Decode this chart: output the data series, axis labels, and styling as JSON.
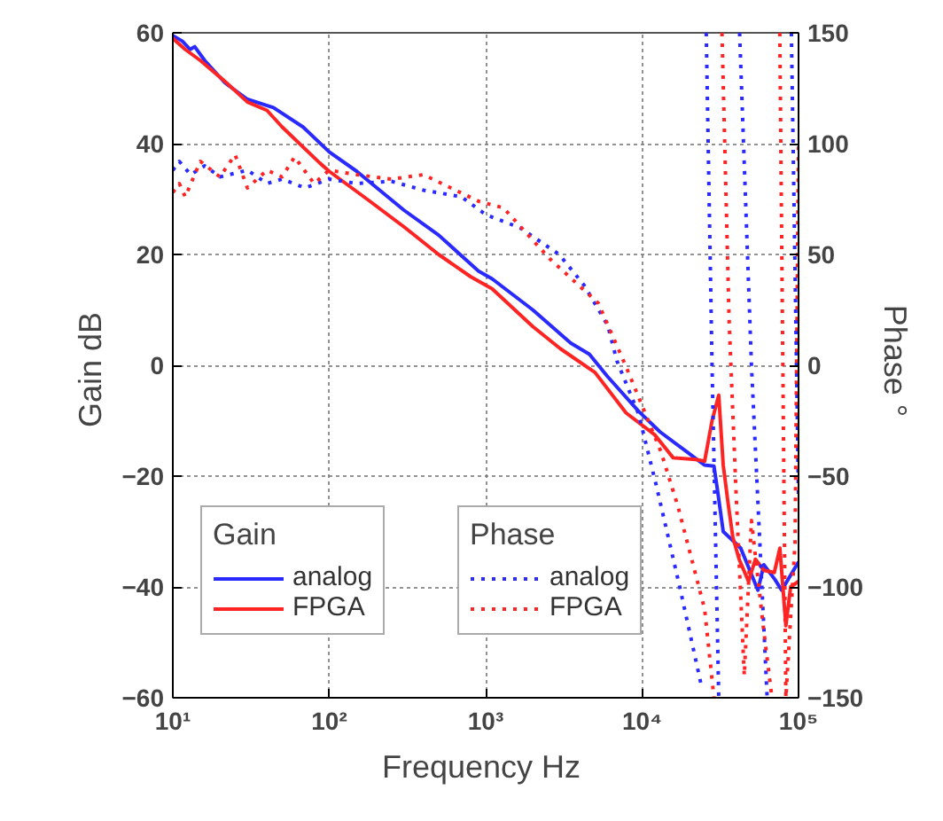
{
  "chart_data": {
    "type": "line",
    "xlabel": "Frequency  Hz",
    "ylabel": "Gain  dB",
    "y2label": "Phase  °",
    "log": "x",
    "xlim": [
      10,
      100000
    ],
    "ylim": [
      -60,
      60
    ],
    "y2lim": [
      -150,
      150
    ],
    "xticks": [
      {
        "value": 10,
        "label": "10¹"
      },
      {
        "value": 100,
        "label": "10²"
      },
      {
        "value": 1000,
        "label": "10³"
      },
      {
        "value": 10000,
        "label": "10⁴"
      },
      {
        "value": 100000,
        "label": "10⁵"
      }
    ],
    "yticks": [
      -60,
      -40,
      -20,
      0,
      20,
      40,
      60
    ],
    "y2ticks": [
      -150,
      -100,
      -50,
      0,
      50,
      100,
      150
    ],
    "grid": true,
    "legend": "bottom left",
    "line_style": "solid",
    "marker": "none",
    "annotations": [
      "Gain",
      "Phase"
    ],
    "series": [
      {
        "name": "analog",
        "color": "#2a2aff",
        "x": [
          10,
          11.5,
          12.9,
          13.8,
          16,
          21.5,
          30,
          44,
          68,
          100,
          150,
          300,
          500,
          900,
          1100,
          2000,
          3500,
          4600,
          6000,
          9500,
          13000,
          19500,
          25000,
          28800,
          30500,
          33000,
          42700,
          55000,
          60000,
          70800,
          78000,
          100000
        ],
        "values": [
          59.5,
          58.5,
          57,
          57.5,
          55,
          51,
          48,
          46.5,
          43,
          38.5,
          35,
          28,
          23.5,
          17,
          15.6,
          10,
          4,
          2,
          -2,
          -8.3,
          -12,
          -15.7,
          -18,
          -18.2,
          -23,
          -30,
          -33,
          -40.6,
          -36,
          -38.7,
          -40.6,
          -35.5
        ]
      },
      {
        "name": "FPGA",
        "color": "#ff2424",
        "x": [
          10,
          12,
          15,
          22,
          30,
          40,
          50,
          87,
          100,
          178,
          300,
          500,
          800,
          1100,
          2000,
          3000,
          5000,
          7900,
          12000,
          15800,
          22000,
          25100,
          28000,
          30900,
          33000,
          35500,
          38000,
          41700,
          47900,
          53000,
          60000,
          70000,
          76000,
          83000,
          89000,
          100000
        ],
        "values": [
          59,
          57,
          55,
          51,
          47.5,
          46,
          43,
          36.5,
          35,
          29.8,
          25,
          20,
          16,
          13.8,
          7,
          3,
          -1.3,
          -8.6,
          -12.5,
          -16.7,
          -17,
          -17.3,
          -10,
          -5.4,
          -18,
          -25,
          -31,
          -35,
          -39,
          -35,
          -37,
          -37.4,
          -33,
          -47,
          -40,
          -39
        ]
      },
      {
        "name": "analog",
        "color": "#2a2aff",
        "axis": "y2",
        "line_style": "dotted",
        "x": [
          10,
          11,
          13,
          16,
          20,
          30,
          40,
          50,
          70,
          100,
          150,
          250,
          400,
          700,
          1000,
          1660,
          2950,
          4270,
          6030,
          6900,
          9500,
          12300,
          17400,
          24000,
          24500,
          25700,
          28000,
          30900,
          31000,
          42000,
          50000,
          63000,
          65000,
          90000,
          100000
        ],
        "values": [
          88,
          92,
          86,
          90,
          85,
          88,
          82,
          84,
          80,
          84,
          82,
          83,
          79,
          76,
          68,
          62,
          50,
          36,
          18,
          2,
          -22,
          -54,
          -100,
          -145,
          null,
          150,
          0,
          -150,
          null,
          150,
          0,
          -150,
          null,
          150,
          -60
        ]
      },
      {
        "name": "FPGA",
        "color": "#ff2424",
        "axis": "y2",
        "line_style": "dotted",
        "x": [
          10,
          11,
          12,
          15,
          20,
          25,
          30,
          40,
          50,
          60,
          80,
          100,
          150,
          250,
          400,
          600,
          900,
          1300,
          2570,
          5250,
          7940,
          13200,
          17000,
          25100,
          28800,
          29000,
          32400,
          36000,
          40000,
          45000,
          50000,
          60000,
          67600,
          68000,
          75900,
          83000,
          95000,
          100000
        ],
        "values": [
          78,
          82,
          76,
          92,
          85,
          95,
          80,
          88,
          85,
          94,
          82,
          88,
          86,
          84,
          86,
          80,
          74,
          71,
          48,
          28,
          -1,
          -39,
          -64,
          -110,
          -150,
          null,
          150,
          20,
          -60,
          -140,
          -70,
          -120,
          -150,
          null,
          150,
          -150,
          -80,
          100
        ]
      }
    ]
  }
}
